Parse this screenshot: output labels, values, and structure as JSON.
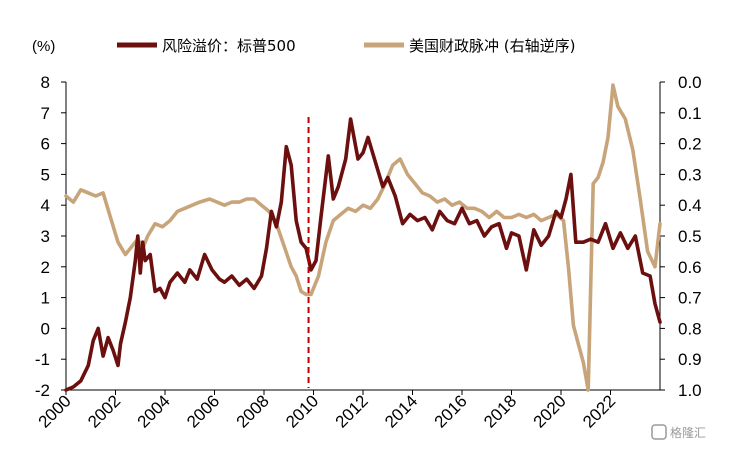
{
  "chart_data": {
    "type": "line",
    "y_unit_label": "(%)",
    "left_axis": {
      "ticks": [
        8,
        7,
        6,
        5,
        4,
        3,
        2,
        1,
        0,
        -1,
        -2
      ],
      "ylim": [
        -2,
        8
      ]
    },
    "right_axis": {
      "ticks": [
        "0.0",
        "0.1",
        "0.2",
        "0.3",
        "0.4",
        "0.5",
        "0.6",
        "0.7",
        "0.8",
        "0.9",
        "1.0"
      ],
      "ylim": [
        0.0,
        1.0
      ],
      "inverted": true
    },
    "x_axis": {
      "ticks": [
        "2000",
        "2002",
        "2004",
        "2006",
        "2008",
        "2010",
        "2012",
        "2014",
        "2016",
        "2018",
        "2020",
        "2022"
      ],
      "xlim": [
        2000.0,
        2024.0
      ]
    },
    "vline": {
      "x": 2009.8,
      "color": "#C00000",
      "style": "dashed"
    },
    "series": [
      {
        "name": "风险溢价：标普500",
        "axis": "left",
        "color": "#6B0F0F",
        "x": [
          2000.0,
          2000.3,
          2000.6,
          2000.9,
          2001.1,
          2001.3,
          2001.5,
          2001.7,
          2001.9,
          2002.1,
          2002.2,
          2002.4,
          2002.6,
          2002.8,
          2002.9,
          2003.0,
          2003.1,
          2003.2,
          2003.4,
          2003.6,
          2003.8,
          2004.0,
          2004.2,
          2004.5,
          2004.8,
          2005.0,
          2005.3,
          2005.6,
          2005.9,
          2006.2,
          2006.4,
          2006.7,
          2007.0,
          2007.3,
          2007.6,
          2007.9,
          2008.1,
          2008.3,
          2008.5,
          2008.7,
          2008.9,
          2009.1,
          2009.3,
          2009.5,
          2009.7,
          2009.9,
          2010.1,
          2010.3,
          2010.6,
          2010.8,
          2011.0,
          2011.3,
          2011.5,
          2011.8,
          2012.0,
          2012.2,
          2012.5,
          2012.8,
          2013.0,
          2013.3,
          2013.6,
          2013.9,
          2014.2,
          2014.5,
          2014.8,
          2015.1,
          2015.4,
          2015.7,
          2016.0,
          2016.3,
          2016.6,
          2016.9,
          2017.2,
          2017.5,
          2017.8,
          2018.0,
          2018.3,
          2018.6,
          2018.9,
          2019.2,
          2019.5,
          2019.8,
          2020.0,
          2020.2,
          2020.4,
          2020.6,
          2020.9,
          2021.2,
          2021.5,
          2021.8,
          2022.1,
          2022.4,
          2022.7,
          2023.0,
          2023.3,
          2023.6,
          2023.8,
          2024.0
        ],
        "values": [
          -2.0,
          -1.9,
          -1.7,
          -1.2,
          -0.4,
          0.0,
          -0.9,
          -0.3,
          -0.7,
          -1.2,
          -0.5,
          0.2,
          1.0,
          2.2,
          3.0,
          1.8,
          2.8,
          2.2,
          2.4,
          1.2,
          1.3,
          1.0,
          1.5,
          1.8,
          1.5,
          1.9,
          1.6,
          2.4,
          1.9,
          1.6,
          1.5,
          1.7,
          1.4,
          1.6,
          1.3,
          1.7,
          2.6,
          3.8,
          3.3,
          4.1,
          5.9,
          5.3,
          3.5,
          2.8,
          2.6,
          1.9,
          2.2,
          3.6,
          5.6,
          4.2,
          4.6,
          5.5,
          6.8,
          5.5,
          5.7,
          6.2,
          5.4,
          4.6,
          4.9,
          4.3,
          3.4,
          3.7,
          3.5,
          3.6,
          3.2,
          3.8,
          3.5,
          3.4,
          3.9,
          3.4,
          3.5,
          3.0,
          3.3,
          3.4,
          2.6,
          3.1,
          3.0,
          1.9,
          3.2,
          2.7,
          3.0,
          3.8,
          3.6,
          4.2,
          5.0,
          2.8,
          2.8,
          2.9,
          2.8,
          3.4,
          2.6,
          3.1,
          2.6,
          3.0,
          1.8,
          1.7,
          0.8,
          0.2
        ]
      },
      {
        "name": "美国财政脉冲 (右轴逆序)",
        "axis": "right",
        "color": "#C8A47A",
        "x": [
          2000.0,
          2000.3,
          2000.6,
          2000.9,
          2001.2,
          2001.5,
          2001.8,
          2002.1,
          2002.4,
          2002.7,
          2002.9,
          2003.1,
          2003.3,
          2003.6,
          2003.9,
          2004.2,
          2004.5,
          2004.8,
          2005.1,
          2005.4,
          2005.8,
          2006.1,
          2006.4,
          2006.7,
          2007.0,
          2007.3,
          2007.6,
          2007.9,
          2008.2,
          2008.5,
          2008.8,
          2009.1,
          2009.3,
          2009.5,
          2009.7,
          2009.9,
          2010.2,
          2010.5,
          2010.8,
          2011.1,
          2011.4,
          2011.7,
          2012.0,
          2012.3,
          2012.6,
          2012.9,
          2013.2,
          2013.5,
          2013.8,
          2014.1,
          2014.4,
          2014.7,
          2015.0,
          2015.3,
          2015.6,
          2015.9,
          2016.2,
          2016.5,
          2016.8,
          2017.1,
          2017.4,
          2017.7,
          2018.0,
          2018.3,
          2018.6,
          2018.9,
          2019.2,
          2019.5,
          2019.8,
          2020.1,
          2020.3,
          2020.5,
          2020.7,
          2020.9,
          2021.1,
          2021.3,
          2021.5,
          2021.7,
          2021.9,
          2022.1,
          2022.3,
          2022.6,
          2022.9,
          2023.2,
          2023.5,
          2023.8,
          2024.0
        ],
        "values": [
          0.37,
          0.39,
          0.35,
          0.36,
          0.37,
          0.36,
          0.44,
          0.52,
          0.56,
          0.53,
          0.51,
          0.54,
          0.5,
          0.46,
          0.47,
          0.45,
          0.42,
          0.41,
          0.4,
          0.39,
          0.38,
          0.39,
          0.4,
          0.39,
          0.39,
          0.38,
          0.38,
          0.4,
          0.42,
          0.46,
          0.53,
          0.6,
          0.63,
          0.68,
          0.69,
          0.69,
          0.63,
          0.52,
          0.45,
          0.43,
          0.41,
          0.42,
          0.4,
          0.41,
          0.38,
          0.33,
          0.27,
          0.25,
          0.3,
          0.33,
          0.36,
          0.37,
          0.39,
          0.38,
          0.4,
          0.39,
          0.41,
          0.41,
          0.42,
          0.44,
          0.42,
          0.44,
          0.44,
          0.43,
          0.44,
          0.43,
          0.45,
          0.44,
          0.43,
          0.45,
          0.6,
          0.79,
          0.85,
          0.91,
          1.0,
          0.33,
          0.31,
          0.26,
          0.18,
          0.01,
          0.08,
          0.12,
          0.22,
          0.38,
          0.55,
          0.6,
          0.46
        ]
      }
    ]
  },
  "watermark": "格隆汇"
}
